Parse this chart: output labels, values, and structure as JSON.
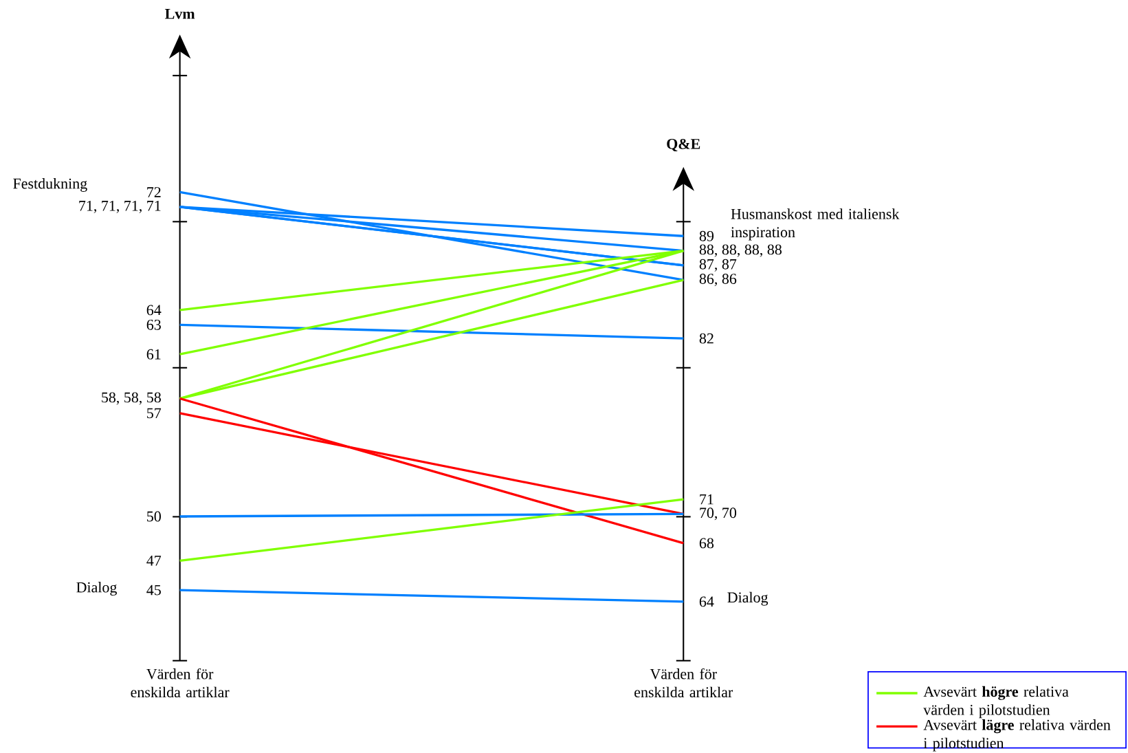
{
  "chart_data": {
    "type": "other",
    "categories": [
      "Lvm",
      "Q&E"
    ],
    "xlabel": "Värden för enskilda artiklar",
    "legend": "bottom right",
    "series": [
      {
        "color": "#0080ff",
        "values": [
          72,
          86
        ],
        "value_labels": [
          "72",
          "86,"
        ]
      },
      {
        "color": "#0080ff",
        "values": [
          71,
          89
        ],
        "value_labels": [
          "71,",
          "89"
        ]
      },
      {
        "color": "#0080ff",
        "values": [
          71,
          88
        ],
        "value_labels": [
          "71,",
          "88,"
        ]
      },
      {
        "color": "#0080ff",
        "values": [
          71,
          87
        ],
        "value_labels": [
          "71,",
          "87,"
        ]
      },
      {
        "color": "#0080ff",
        "values": [
          71,
          87
        ],
        "value_labels": [
          "71",
          "87"
        ]
      },
      {
        "name": "Avsevärt **högre** relativa värden i pilotstudien",
        "color": "#80ff00",
        "values": [
          64,
          88
        ],
        "value_labels": [
          "64",
          "88,"
        ]
      },
      {
        "color": "#0080ff",
        "values": [
          63,
          82
        ],
        "value_labels": [
          "63",
          "82"
        ]
      },
      {
        "color": "#80ff00",
        "values": [
          61,
          88
        ],
        "value_labels": [
          "61",
          "88,"
        ]
      },
      {
        "color": "#80ff00",
        "values": [
          58,
          88
        ],
        "value_labels": [
          "58,",
          "88"
        ]
      },
      {
        "color": "#80ff00",
        "values": [
          58,
          86
        ],
        "value_labels": [
          "58,",
          "86"
        ]
      },
      {
        "name": "Avsevärt **lägre** relativa värden i pilotstudien",
        "color": "#ff0000",
        "values": [
          58,
          68
        ],
        "value_labels": [
          "58",
          "68"
        ]
      },
      {
        "color": "#ff0000",
        "values": [
          57,
          70
        ],
        "value_labels": [
          "57",
          "70,"
        ]
      },
      {
        "color": "#0080ff",
        "values": [
          50,
          70
        ],
        "value_labels": [
          "50",
          "70"
        ]
      },
      {
        "color": "#80ff00",
        "values": [
          47,
          71
        ],
        "value_labels": [
          "47",
          "71"
        ]
      },
      {
        "color": "#0080ff",
        "values": [
          45,
          64
        ],
        "value_labels": [
          "45",
          "64"
        ]
      }
    ],
    "annotations": [
      "Festdukning",
      "Dialog",
      "Husmanskost med italiensk inspiration",
      "Dialog"
    ]
  }
}
